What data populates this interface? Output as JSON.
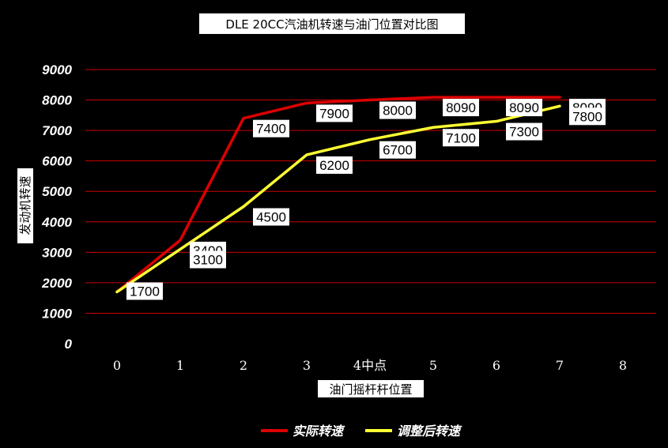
{
  "chart_data": {
    "type": "line",
    "title": "DLE 20CC汽油机转速与油门位置对比图",
    "xlabel": "油门摇杆杆位置",
    "ylabel": "发动机转速",
    "x_tick_labels": [
      "0",
      "1",
      "2",
      "3",
      "4中点",
      "5",
      "6",
      "7",
      "8"
    ],
    "y_tick_labels": [
      "0",
      "1000",
      "2000",
      "3000",
      "4000",
      "5000",
      "6000",
      "7000",
      "8000",
      "9000"
    ],
    "xlim": [
      0,
      8
    ],
    "ylim": [
      0,
      9000
    ],
    "grid": true,
    "legend_position": "bottom",
    "series": [
      {
        "name": "实际转速",
        "color": "#dd0000",
        "x": [
          0,
          1,
          2,
          3,
          4,
          5,
          6,
          7
        ],
        "values": [
          1700,
          3400,
          7400,
          7900,
          8000,
          8090,
          8090,
          8090
        ],
        "labels": [
          "1700",
          "3400",
          "7400",
          "7900",
          "8000",
          "8090",
          "8090",
          "8090"
        ]
      },
      {
        "name": "调整后转速",
        "color": "#ffff33",
        "x": [
          0,
          1,
          2,
          3,
          4,
          5,
          6,
          7
        ],
        "values": [
          1700,
          3100,
          4500,
          6200,
          6700,
          7100,
          7300,
          7800
        ],
        "labels": [
          "1700",
          "3100",
          "4500",
          "6200",
          "6700",
          "7100",
          "7300",
          "7800"
        ]
      }
    ]
  }
}
